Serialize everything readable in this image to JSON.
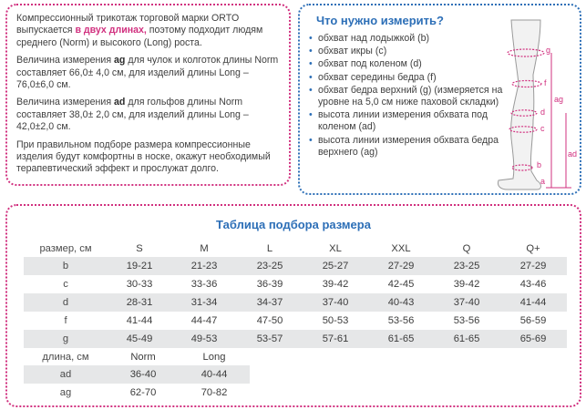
{
  "intro": {
    "p1_a": "Компрессионный трикотаж торговой марки ORTO выпускается ",
    "p1_b": "в двух длинах,",
    "p1_c": " поэтому подходит людям среднего (Norm) и высокого (Long) роста.",
    "p2_a": "Величина измерения ",
    "p2_b": "ag",
    "p2_c": " для чулок и колготок длины Norm составляет 66,0± 4,0 см, для изделий длины Long – 76,0±6,0 см.",
    "p3_a": "Величина измерения ",
    "p3_b": "ad",
    "p3_c": " для гольфов длины Norm составляет 38,0± 2,0 см, для изделий длины Long – 42,0±2,0 см.",
    "p4": "При правильном подборе размера компрессионные изделия будут комфортны в носке, окажут необходимый терапевтический эффект и прослужат долго."
  },
  "measure": {
    "title": "Что нужно измерить?",
    "items": [
      "обхват над лодыжкой (b)",
      "обхват икры (c)",
      "обхват под коленом (d)",
      "обхват середины бедра (f)",
      "обхват бедра верхний (g) (измеряется на уровне на 5,0 см ниже паховой складки)",
      "высота линии измерения обхвата под коленом (ad)",
      "высота линии измерения обхвата бедра верхнего (ag)"
    ],
    "diagram_labels": {
      "g": "g",
      "f": "f",
      "d": "d",
      "c": "c",
      "b": "b",
      "a": "a",
      "ag": "ag",
      "ad": "ad"
    }
  },
  "size_table": {
    "title": "Таблица подбора размера",
    "headers": [
      "размер, см",
      "S",
      "M",
      "L",
      "XL",
      "XXL",
      "Q",
      "Q+"
    ],
    "rows": [
      [
        "b",
        "19-21",
        "21-23",
        "23-25",
        "25-27",
        "27-29",
        "23-25",
        "27-29"
      ],
      [
        "c",
        "30-33",
        "33-36",
        "36-39",
        "39-42",
        "42-45",
        "39-42",
        "43-46"
      ],
      [
        "d",
        "28-31",
        "31-34",
        "34-37",
        "37-40",
        "40-43",
        "37-40",
        "41-44"
      ],
      [
        "f",
        "41-44",
        "44-47",
        "47-50",
        "50-53",
        "53-56",
        "53-56",
        "56-59"
      ],
      [
        "g",
        "45-49",
        "49-53",
        "53-57",
        "57-61",
        "61-65",
        "61-65",
        "65-69"
      ]
    ]
  },
  "length_table": {
    "headers": [
      "длина, см",
      "Norm",
      "Long"
    ],
    "rows": [
      [
        "ad",
        "36-40",
        "40-44"
      ],
      [
        "ag",
        "62-70",
        "70-82"
      ]
    ]
  },
  "colors": {
    "pink": "#d1307f",
    "blue": "#2d6fb7",
    "shade": "#e6e7e8"
  }
}
